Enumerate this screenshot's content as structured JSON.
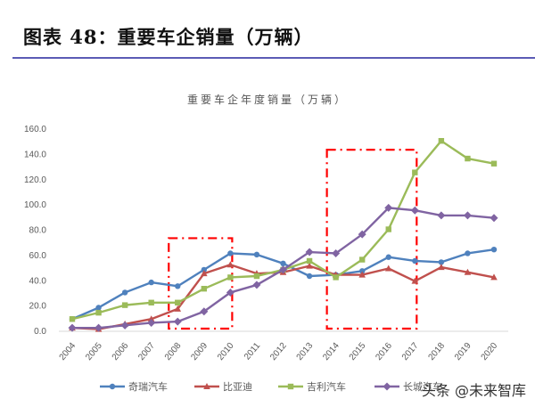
{
  "figure": {
    "title": "图表 48：重要车企销量（万辆）",
    "watermark": "头条 @未来智库"
  },
  "chart_data": {
    "type": "line",
    "title": "重要车企年度销量（万辆）",
    "xlabel": "",
    "ylabel": "",
    "ylim": [
      0,
      160
    ],
    "yticks": [
      "0.0",
      "20.0",
      "40.0",
      "60.0",
      "80.0",
      "100.0",
      "120.0",
      "140.0",
      "160.0"
    ],
    "grid": false,
    "legend_position": "bottom",
    "categories": [
      "2004",
      "2005",
      "2006",
      "2007",
      "2008",
      "2009",
      "2010",
      "2011",
      "2012",
      "2013",
      "2014",
      "2015",
      "2016",
      "2017",
      "2018",
      "2019",
      "2020"
    ],
    "series": [
      {
        "name": "奇瑞汽车",
        "color": "#4f81bd",
        "marker": "circle",
        "values": [
          9,
          18,
          30,
          38,
          35,
          48,
          61,
          60,
          53,
          43,
          44,
          47,
          58,
          55,
          54,
          61,
          64
        ]
      },
      {
        "name": "比亚迪",
        "color": "#c0504d",
        "marker": "triangle",
        "values": [
          2,
          1,
          5,
          9,
          17,
          45,
          52,
          45,
          46,
          51,
          44,
          44,
          49,
          39,
          50,
          46,
          42
        ]
      },
      {
        "name": "吉利汽车",
        "color": "#9bbb59",
        "marker": "square",
        "values": [
          9,
          14,
          20,
          22,
          22,
          33,
          42,
          43,
          48,
          55,
          42,
          56,
          80,
          125,
          150,
          136,
          132
        ]
      },
      {
        "name": "长城汽车",
        "color": "#8064a2",
        "marker": "diamond",
        "values": [
          2,
          2,
          4,
          6,
          7,
          15,
          30,
          36,
          48,
          62,
          61,
          76,
          97,
          95,
          91,
          91,
          89
        ]
      }
    ],
    "annotations": [
      {
        "type": "dashdot-rect",
        "color": "#ff0000",
        "x_from": "2008",
        "x_to": "2010",
        "y_from": 0,
        "y_to": 73
      },
      {
        "type": "dashdot-rect",
        "color": "#ff0000",
        "x_from": "2014",
        "x_to": "2017",
        "y_from": 0,
        "y_to": 143
      }
    ]
  }
}
